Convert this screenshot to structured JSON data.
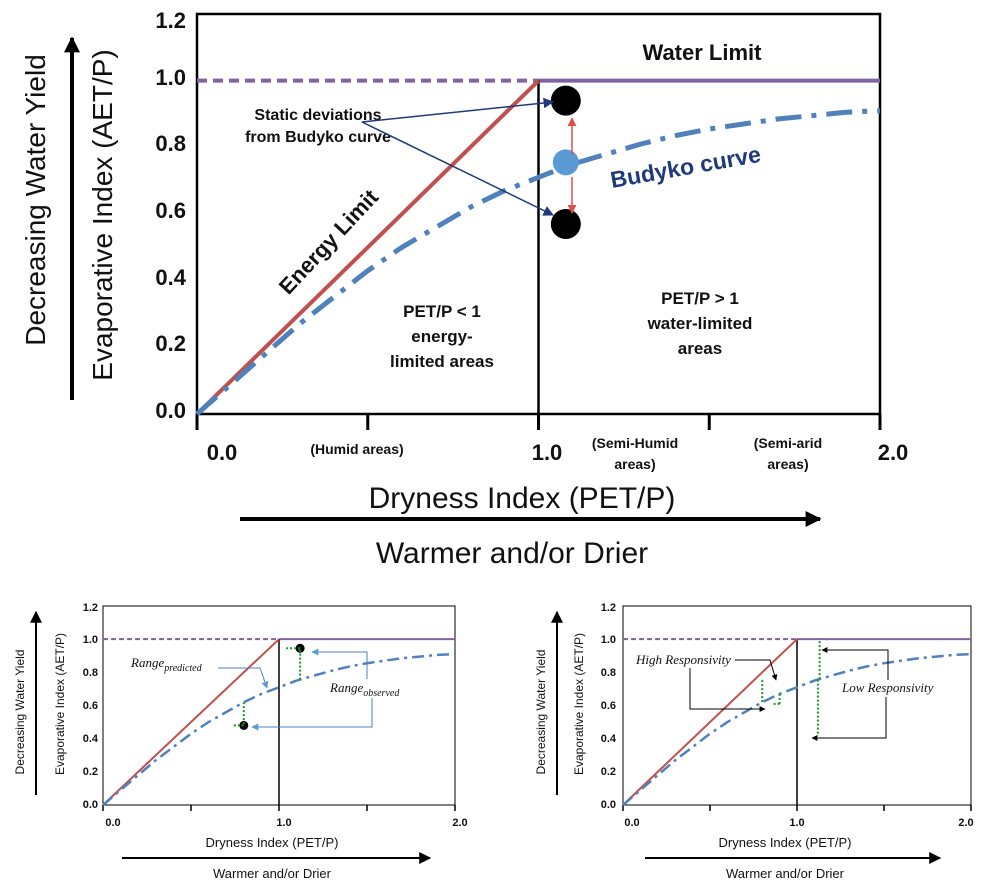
{
  "chart_data": [
    {
      "type": "line",
      "xlabel": "Dryness Index (PET/P)",
      "ylabel": "Evaporative Index (AET/P)",
      "outer_ylabel": "Decreasing Water Yield",
      "bottom_arrow_label": "Warmer and/or Drier",
      "xlim": [
        0,
        2.0
      ],
      "ylim": [
        0,
        1.2
      ],
      "x_ticks": [
        "0.0",
        "1.0",
        "2.0"
      ],
      "y_ticks": [
        "0.0",
        "0.2",
        "0.4",
        "0.6",
        "0.8",
        "1.0",
        "1.2"
      ],
      "x_region_labels": [
        {
          "lines": [
            "(Humid areas)"
          ]
        },
        {
          "lines": [
            "(Semi-Humid",
            "areas)"
          ]
        },
        {
          "lines": [
            "(Semi-arid",
            "areas)"
          ]
        }
      ],
      "series": [
        {
          "name": "Energy Limit",
          "style": "solid",
          "color": "#c0504d",
          "x": [
            0,
            1.0
          ],
          "y": [
            0,
            1.0
          ]
        },
        {
          "name": "Water Limit",
          "style": "solid",
          "color": "#8064a2",
          "x": [
            1.0,
            2.0
          ],
          "y": [
            1.0,
            1.0
          ]
        },
        {
          "name": "Budyko curve",
          "style": "dash-dot",
          "color": "#4f81bd",
          "x": [
            0,
            0.1,
            0.2,
            0.3,
            0.4,
            0.5,
            0.6,
            0.7,
            0.8,
            0.9,
            1.0,
            1.1,
            1.2,
            1.3,
            1.4,
            1.5,
            1.6,
            1.7,
            1.8,
            1.9,
            2.0
          ],
          "y": [
            0,
            0.09,
            0.18,
            0.27,
            0.35,
            0.43,
            0.5,
            0.56,
            0.62,
            0.67,
            0.71,
            0.75,
            0.78,
            0.81,
            0.835,
            0.855,
            0.87,
            0.885,
            0.895,
            0.905,
            0.91
          ]
        }
      ],
      "water_limit_dashed_segment": {
        "x": [
          0,
          1.0
        ],
        "y": 1.0,
        "color": "#8064a2"
      },
      "vertical_line": {
        "x": 1.0,
        "color": "#000000"
      },
      "points": [
        {
          "x": 1.08,
          "y": 0.94,
          "color": "#000000"
        },
        {
          "x": 1.08,
          "y": 0.57,
          "color": "#000000"
        },
        {
          "x": 1.08,
          "y": 0.755,
          "color": "#5b9bd5"
        }
      ],
      "annotations": {
        "water_limit": "Water Limit",
        "energy_limit": "Energy Limit",
        "budyko": "Budyko curve",
        "static_deviation": [
          "Static deviations",
          "from Budyko curve"
        ],
        "energy_region": [
          "PET/P < 1",
          "energy-",
          "limited areas"
        ],
        "water_region": [
          "PET/P > 1",
          "water-limited",
          "areas"
        ]
      }
    },
    {
      "type": "line",
      "xlabel": "Dryness Index (PET/P)",
      "ylabel": "Evaporative Index (AET/P)",
      "outer_ylabel": "Decreasing Water Yield",
      "bottom_arrow_label": "Warmer and/or Drier",
      "xlim": [
        0,
        2.0
      ],
      "ylim": [
        0,
        1.2
      ],
      "x_ticks": [
        "0.0",
        "1.0",
        "2.0"
      ],
      "y_ticks": [
        "0.0",
        "0.2",
        "0.4",
        "0.6",
        "0.8",
        "1.0",
        "1.2"
      ],
      "points": [
        {
          "x": 1.12,
          "y": 0.945,
          "color": "#000000"
        },
        {
          "x": 0.8,
          "y": 0.48,
          "color": "#000000"
        }
      ],
      "annotations": {
        "range_predicted": {
          "base": "Range",
          "sub": "predicted"
        },
        "range_observed": {
          "base": "Range",
          "sub": "observed"
        }
      }
    },
    {
      "type": "line",
      "xlabel": "Dryness Index (PET/P)",
      "ylabel": "Evaporative Index (AET/P)",
      "outer_ylabel": "Decreasing Water Yield",
      "bottom_arrow_label": "Warmer and/or Drier",
      "xlim": [
        0,
        2.0
      ],
      "ylim": [
        0,
        1.2
      ],
      "x_ticks": [
        "0.0",
        "1.0",
        "2.0"
      ],
      "y_ticks": [
        "0.0",
        "0.2",
        "0.4",
        "0.6",
        "0.8",
        "1.0",
        "1.2"
      ],
      "annotations": {
        "high": "High Responsivity",
        "low": "Low Responsivity"
      }
    }
  ]
}
